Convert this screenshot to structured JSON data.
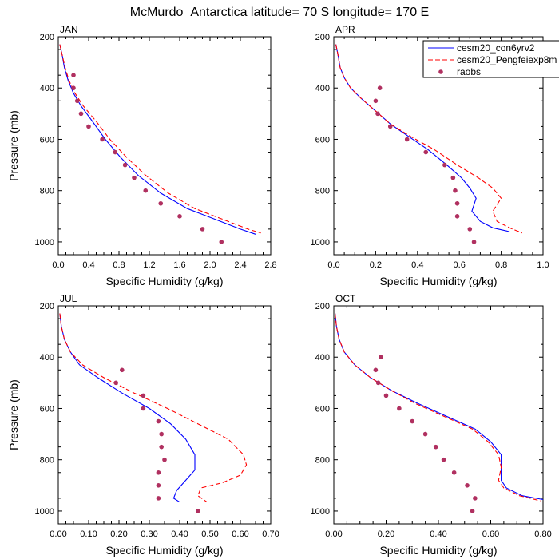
{
  "title": "McMurdo_Antarctica  latitude= 70 S longitude= 170 E",
  "legend": {
    "placement": "top-right",
    "entries": [
      {
        "label": "cesm20_con6yrv2",
        "style": "solid",
        "color": "#0000ff"
      },
      {
        "label": "cesm20_Pengfeiexp8m",
        "style": "dashed",
        "color": "#ff0000"
      },
      {
        "label": "raobs",
        "style": "dots",
        "color": "#b03060"
      }
    ]
  },
  "chart_data": [
    {
      "type": "line",
      "panel_title": "JAN",
      "xlabel": "Specific Humidity (g/kg)",
      "ylabel": "Pressure (mb)",
      "xlim": [
        0,
        2.8
      ],
      "ylim": [
        1050,
        200
      ],
      "xticks": [
        "0.0",
        "0.4",
        "0.8",
        "1.2",
        "1.6",
        "2.0",
        "2.4",
        "2.8"
      ],
      "xtick_values": [
        0,
        0.4,
        0.8,
        1.2,
        1.6,
        2.0,
        2.4,
        2.8
      ],
      "yticks": [
        "200",
        "400",
        "600",
        "800",
        "1000"
      ],
      "ytick_values": [
        200,
        400,
        600,
        800,
        1000
      ],
      "series": [
        {
          "name": "cesm20_con6yrv2",
          "style": "solid",
          "color": "#0000ff",
          "x": [
            0.02,
            0.05,
            0.08,
            0.13,
            0.2,
            0.3,
            0.45,
            0.62,
            0.82,
            1.05,
            1.35,
            1.7,
            2.05,
            2.4,
            2.6
          ],
          "y": [
            230,
            270,
            320,
            370,
            420,
            470,
            530,
            600,
            670,
            740,
            810,
            870,
            910,
            950,
            970
          ]
        },
        {
          "name": "cesm20_Pengfeiexp8m",
          "style": "dashed",
          "color": "#ff0000",
          "x": [
            0.02,
            0.05,
            0.09,
            0.14,
            0.22,
            0.33,
            0.5,
            0.68,
            0.9,
            1.15,
            1.45,
            1.8,
            2.15,
            2.5,
            2.67
          ],
          "y": [
            230,
            270,
            320,
            370,
            420,
            470,
            530,
            600,
            670,
            740,
            810,
            870,
            910,
            950,
            965
          ]
        },
        {
          "name": "raobs",
          "style": "dots",
          "color": "#b03060",
          "x": [
            0.2,
            0.2,
            0.25,
            0.3,
            0.4,
            0.58,
            0.75,
            0.88,
            1.0,
            1.15,
            1.35,
            1.6,
            1.9,
            2.15
          ],
          "y": [
            350,
            400,
            450,
            500,
            550,
            600,
            650,
            700,
            750,
            800,
            850,
            900,
            950,
            1000
          ]
        }
      ]
    },
    {
      "type": "line",
      "panel_title": "APR",
      "xlabel": "Specific Humidity (g/kg)",
      "ylabel": "",
      "xlim": [
        0,
        1.0
      ],
      "ylim": [
        1050,
        200
      ],
      "xticks": [
        "0.0",
        "0.2",
        "0.4",
        "0.6",
        "0.8",
        "1.0"
      ],
      "xtick_values": [
        0,
        0.2,
        0.4,
        0.6,
        0.8,
        1.0
      ],
      "yticks": [
        "200",
        "400",
        "600",
        "800",
        "1000"
      ],
      "ytick_values": [
        200,
        400,
        600,
        800,
        1000
      ],
      "series": [
        {
          "name": "cesm20_con6yrv2",
          "style": "solid",
          "color": "#0000ff",
          "x": [
            0.01,
            0.02,
            0.03,
            0.05,
            0.08,
            0.13,
            0.2,
            0.27,
            0.36,
            0.45,
            0.54,
            0.61,
            0.65,
            0.68,
            0.66,
            0.7,
            0.76,
            0.84
          ],
          "y": [
            230,
            270,
            320,
            360,
            400,
            440,
            490,
            540,
            590,
            640,
            700,
            750,
            790,
            830,
            880,
            920,
            945,
            960
          ]
        },
        {
          "name": "cesm20_Pengfeiexp8m",
          "style": "dashed",
          "color": "#ff0000",
          "x": [
            0.01,
            0.02,
            0.03,
            0.05,
            0.08,
            0.13,
            0.2,
            0.27,
            0.37,
            0.48,
            0.59,
            0.69,
            0.76,
            0.8,
            0.76,
            0.78,
            0.84,
            0.9
          ],
          "y": [
            230,
            270,
            320,
            360,
            400,
            440,
            490,
            540,
            590,
            640,
            700,
            750,
            790,
            830,
            880,
            920,
            945,
            965
          ]
        },
        {
          "name": "raobs",
          "style": "dots",
          "color": "#b03060",
          "x": [
            0.22,
            0.2,
            0.21,
            0.27,
            0.35,
            0.44,
            0.53,
            0.57,
            0.58,
            0.59,
            0.59,
            0.65,
            0.67
          ],
          "y": [
            400,
            450,
            500,
            550,
            600,
            650,
            700,
            750,
            800,
            850,
            900,
            950,
            1000
          ]
        }
      ]
    },
    {
      "type": "line",
      "panel_title": "JUL",
      "xlabel": "Specific Humidity (g/kg)",
      "ylabel": "Pressure (mb)",
      "xlim": [
        0,
        0.7
      ],
      "ylim": [
        1050,
        200
      ],
      "xticks": [
        "0.00",
        "0.10",
        "0.20",
        "0.30",
        "0.40",
        "0.50",
        "0.60",
        "0.70"
      ],
      "xtick_values": [
        0,
        0.1,
        0.2,
        0.3,
        0.4,
        0.5,
        0.6,
        0.7
      ],
      "yticks": [
        "200",
        "400",
        "600",
        "800",
        "1000"
      ],
      "ytick_values": [
        200,
        400,
        600,
        800,
        1000
      ],
      "series": [
        {
          "name": "cesm20_con6yrv2",
          "style": "solid",
          "color": "#0000ff",
          "x": [
            0.005,
            0.01,
            0.02,
            0.04,
            0.07,
            0.13,
            0.21,
            0.3,
            0.37,
            0.42,
            0.45,
            0.45,
            0.42,
            0.39,
            0.38,
            0.4
          ],
          "y": [
            230,
            280,
            330,
            380,
            430,
            480,
            540,
            600,
            660,
            720,
            780,
            840,
            880,
            920,
            950,
            965
          ]
        },
        {
          "name": "cesm20_Pengfeiexp8m",
          "style": "dashed",
          "color": "#ff0000",
          "x": [
            0.005,
            0.01,
            0.02,
            0.04,
            0.08,
            0.15,
            0.25,
            0.36,
            0.46,
            0.56,
            0.61,
            0.62,
            0.6,
            0.54,
            0.47,
            0.46,
            0.49
          ],
          "y": [
            230,
            280,
            330,
            380,
            430,
            480,
            540,
            600,
            660,
            720,
            780,
            820,
            860,
            890,
            910,
            940,
            965
          ]
        },
        {
          "name": "raobs",
          "style": "dots",
          "color": "#b03060",
          "x": [
            0.21,
            0.19,
            0.28,
            0.28,
            0.33,
            0.34,
            0.34,
            0.35,
            0.33,
            0.33,
            0.33,
            0.46
          ],
          "y": [
            450,
            500,
            550,
            600,
            650,
            700,
            750,
            800,
            850,
            900,
            950,
            1000
          ]
        }
      ]
    },
    {
      "type": "line",
      "panel_title": "OCT",
      "xlabel": "Specific Humidity (g/kg)",
      "ylabel": "",
      "xlim": [
        0,
        0.8
      ],
      "ylim": [
        1050,
        200
      ],
      "xticks": [
        "0.00",
        "0.20",
        "0.40",
        "0.60",
        "0.80"
      ],
      "xtick_values": [
        0,
        0.2,
        0.4,
        0.6,
        0.8
      ],
      "yticks": [
        "200",
        "400",
        "600",
        "800",
        "1000"
      ],
      "ytick_values": [
        200,
        400,
        600,
        800,
        1000
      ],
      "series": [
        {
          "name": "cesm20_con6yrv2",
          "style": "solid",
          "color": "#0000ff",
          "x": [
            0.005,
            0.01,
            0.02,
            0.04,
            0.08,
            0.14,
            0.22,
            0.32,
            0.43,
            0.54,
            0.6,
            0.64,
            0.64,
            0.64,
            0.66,
            0.72,
            0.8
          ],
          "y": [
            230,
            280,
            330,
            380,
            430,
            480,
            530,
            580,
            630,
            680,
            730,
            780,
            830,
            880,
            910,
            940,
            955
          ]
        },
        {
          "name": "cesm20_Pengfeiexp8m",
          "style": "dashed",
          "color": "#ff0000",
          "x": [
            0.005,
            0.01,
            0.02,
            0.04,
            0.08,
            0.14,
            0.22,
            0.31,
            0.42,
            0.53,
            0.59,
            0.63,
            0.64,
            0.63,
            0.65,
            0.71,
            0.79
          ],
          "y": [
            230,
            280,
            330,
            380,
            430,
            480,
            530,
            580,
            630,
            680,
            730,
            780,
            830,
            880,
            910,
            940,
            960
          ]
        },
        {
          "name": "raobs",
          "style": "dots",
          "color": "#b03060",
          "x": [
            0.18,
            0.16,
            0.17,
            0.2,
            0.25,
            0.3,
            0.35,
            0.39,
            0.42,
            0.46,
            0.51,
            0.54,
            0.53
          ],
          "y": [
            400,
            450,
            500,
            550,
            600,
            650,
            700,
            750,
            800,
            850,
            900,
            950,
            1000
          ]
        }
      ]
    }
  ]
}
